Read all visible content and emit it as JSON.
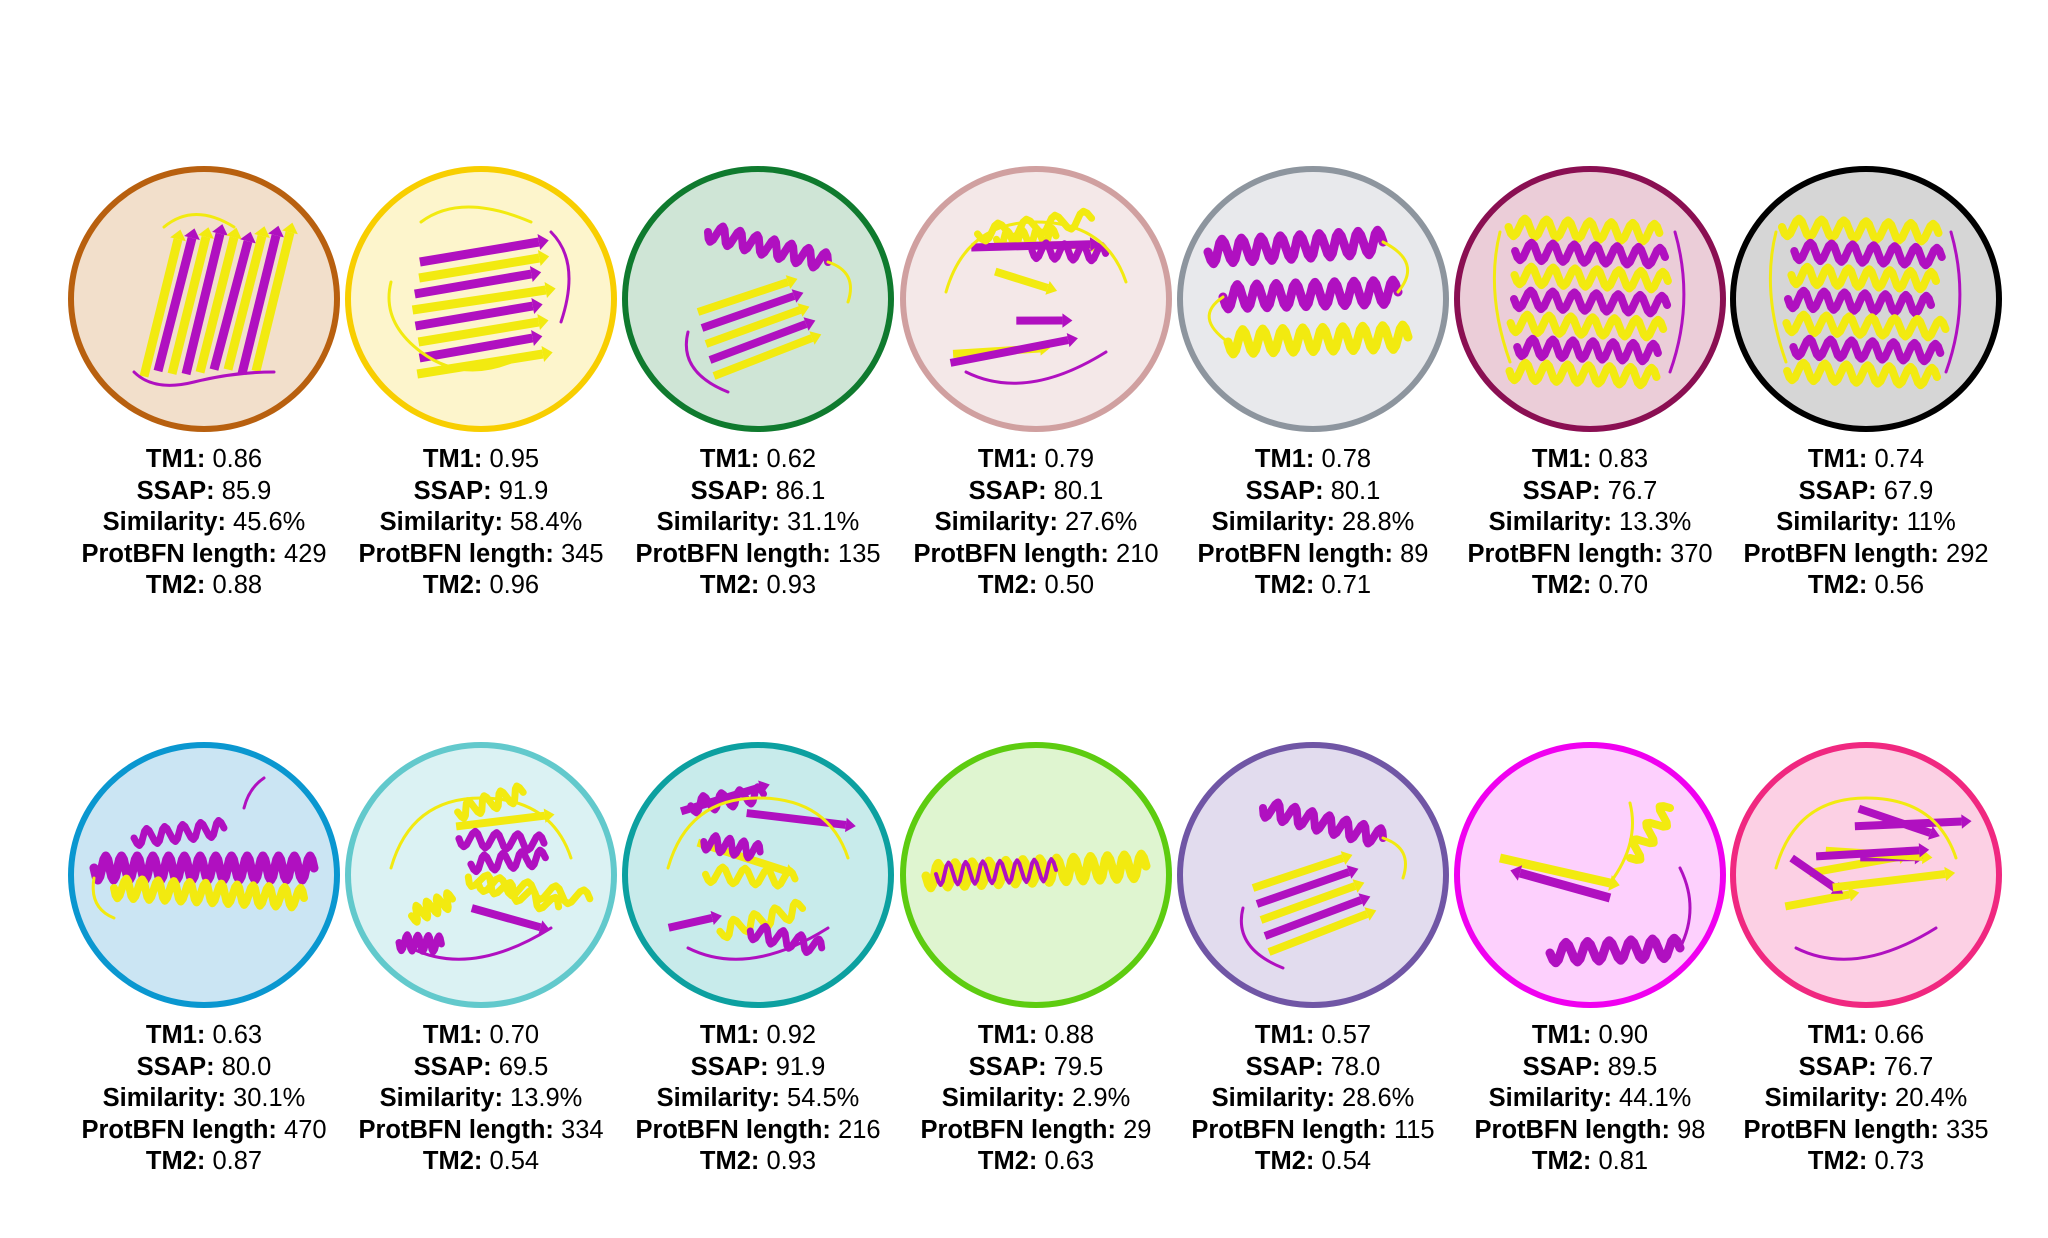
{
  "labels": {
    "tm1": "TM1:",
    "ssap": "SSAP:",
    "similarity": "Similarity:",
    "length": "ProtBFN length:",
    "tm2": "TM2:"
  },
  "structure_colors": {
    "primary": "#b010c0",
    "secondary": "#f2ea10"
  },
  "proteins": [
    {
      "tm1": "0.86",
      "ssap": "85.9",
      "similarity": "45.6%",
      "length": "429",
      "tm2": "0.88",
      "border": "#b8600f",
      "fill": "#f2dfcb",
      "motif": "barrel"
    },
    {
      "tm1": "0.95",
      "ssap": "91.9",
      "similarity": "58.4%",
      "length": "345",
      "tm2": "0.96",
      "border": "#f8ce00",
      "fill": "#fdf5cc",
      "motif": "sheet"
    },
    {
      "tm1": "0.62",
      "ssap": "86.1",
      "similarity": "31.1%",
      "length": "135",
      "tm2": "0.93",
      "border": "#0f7a2e",
      "fill": "#cfe5d6",
      "motif": "helix-sheet"
    },
    {
      "tm1": "0.79",
      "ssap": "80.1",
      "similarity": "27.6%",
      "length": "210",
      "tm2": "0.50",
      "border": "#d0a0a0",
      "fill": "#f4e8e8",
      "motif": "mixed"
    },
    {
      "tm1": "0.78",
      "ssap": "80.1",
      "similarity": "28.8%",
      "length": "89",
      "tm2": "0.71",
      "border": "#8d959e",
      "fill": "#e8e9ec",
      "motif": "three-helix"
    },
    {
      "tm1": "0.83",
      "ssap": "76.7",
      "similarity": "13.3%",
      "length": "370",
      "tm2": "0.70",
      "border": "#8a0f52",
      "fill": "#ebcdd8",
      "motif": "helix-bundle"
    },
    {
      "tm1": "0.74",
      "ssap": "67.9",
      "similarity": "11%",
      "length": "292",
      "tm2": "0.56",
      "border": "#000000",
      "fill": "#d6d6d6",
      "motif": "helix-bundle"
    },
    {
      "tm1": "0.63",
      "ssap": "80.0",
      "similarity": "30.1%",
      "length": "470",
      "tm2": "0.87",
      "border": "#0a97d0",
      "fill": "#cbe5f3",
      "motif": "helix-long"
    },
    {
      "tm1": "0.70",
      "ssap": "69.5",
      "similarity": "13.9%",
      "length": "334",
      "tm2": "0.54",
      "border": "#62c9cc",
      "fill": "#dbf2f3",
      "motif": "mixed"
    },
    {
      "tm1": "0.92",
      "ssap": "91.9",
      "similarity": "54.5%",
      "length": "216",
      "tm2": "0.93",
      "border": "#0ca0a0",
      "fill": "#c8ebeb",
      "motif": "mixed"
    },
    {
      "tm1": "0.88",
      "ssap": "79.5",
      "similarity": "2.9%",
      "length": "29",
      "tm2": "0.63",
      "border": "#5dcc10",
      "fill": "#dff5d0",
      "motif": "single-helix"
    },
    {
      "tm1": "0.57",
      "ssap": "78.0",
      "similarity": "28.6%",
      "length": "115",
      "tm2": "0.54",
      "border": "#7056a5",
      "fill": "#e2dcee",
      "motif": "helix-sheet"
    },
    {
      "tm1": "0.90",
      "ssap": "89.5",
      "similarity": "44.1%",
      "length": "98",
      "tm2": "0.81",
      "border": "#f000f0",
      "fill": "#fdd0fd",
      "motif": "sparse"
    },
    {
      "tm1": "0.66",
      "ssap": "76.7",
      "similarity": "20.4%",
      "length": "335",
      "tm2": "0.73",
      "border": "#f02880",
      "fill": "#fcd0e4",
      "motif": "mixed"
    }
  ]
}
